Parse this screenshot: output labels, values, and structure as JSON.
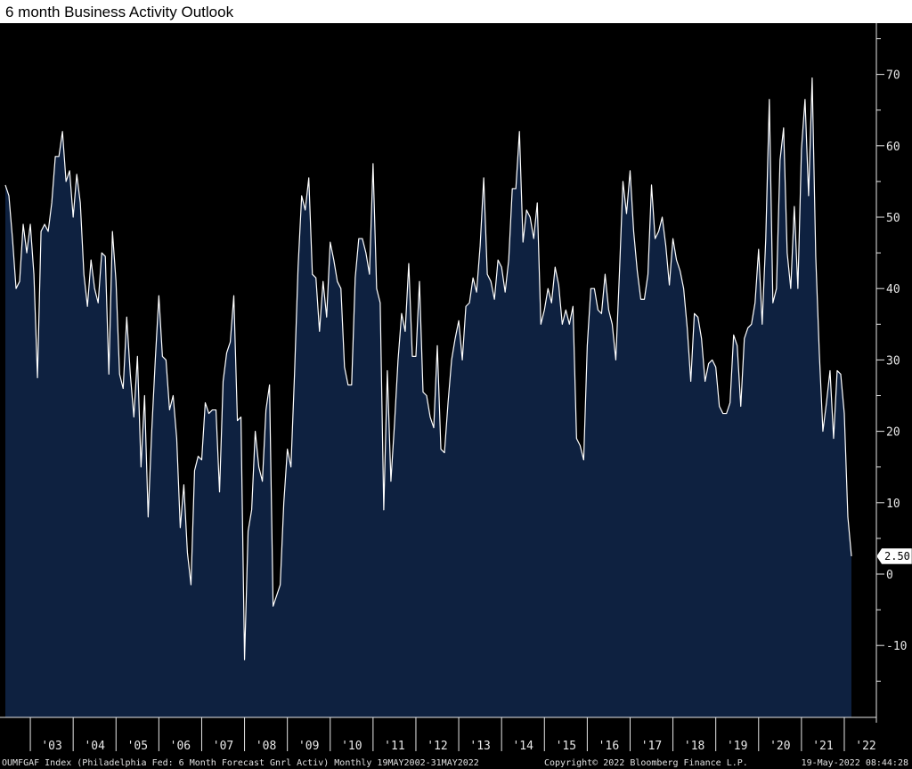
{
  "title": "6 month Business Activity Outlook",
  "chart_data": {
    "type": "area",
    "title": "6 month Business Activity Outlook",
    "xlabel": "",
    "ylabel": "",
    "ylim": [
      -20,
      77
    ],
    "y_ticks": [
      -10,
      0,
      10,
      20,
      30,
      40,
      50,
      60,
      70
    ],
    "y_tick_labels": [
      "-10",
      "0",
      "10",
      "20",
      "30",
      "40",
      "50",
      "60",
      "70"
    ],
    "x_tick_labels": [
      "'03",
      "'04",
      "'05",
      "'06",
      "'07",
      "'08",
      "'09",
      "'10",
      "'11",
      "'12",
      "'13",
      "'14",
      "'15",
      "'16",
      "'17",
      "'18",
      "'19",
      "'20",
      "'21",
      "'22"
    ],
    "x_start": "2002-05",
    "x_end": "2022-05",
    "frequency": "monthly",
    "last_value_label": "2.50",
    "colors": {
      "fill": "#0e2140",
      "line": "#ffffff",
      "background": "#000000",
      "marker_bg": "#ffffff"
    },
    "series": [
      {
        "values": [
          54.5,
          53.0,
          47.0,
          40.0,
          41.0,
          49.0,
          45.0,
          49.0,
          42.0,
          27.5,
          48.0,
          49.0,
          48.0,
          52.0,
          58.5,
          58.5,
          62.0,
          55.0,
          56.5,
          50.0,
          56.0,
          52.0,
          42.0,
          37.5,
          44.0,
          40.0,
          38.0,
          45.0,
          44.5,
          28.0,
          48.0,
          41.0,
          28.0,
          26.0,
          36.0,
          28.0,
          22.0,
          30.5,
          15.0,
          25.0,
          8.0,
          20.0,
          30.0,
          39.0,
          30.5,
          30.0,
          23.0,
          25.0,
          19.0,
          6.5,
          12.5,
          3.0,
          -1.5,
          14.5,
          16.5,
          16.0,
          24.0,
          22.5,
          23.0,
          23.0,
          11.5,
          27.0,
          31.0,
          32.5,
          39.0,
          21.5,
          22.0,
          -12.0,
          6.0,
          9.0,
          20.0,
          15.0,
          13.0,
          23.0,
          26.5,
          -4.5,
          -3.0,
          -1.5,
          10.0,
          17.5,
          15.0,
          28.0,
          43.0,
          53.0,
          51.0,
          55.5,
          42.0,
          41.5,
          34.0,
          41.0,
          36.0,
          46.5,
          44.0,
          41.0,
          40.0,
          29.0,
          26.5,
          26.5,
          41.5,
          47.0,
          47.0,
          45.0,
          42.0,
          57.5,
          40.0,
          38.0,
          9.0,
          28.5,
          13.0,
          21.0,
          30.0,
          36.5,
          34.0,
          43.5,
          30.5,
          30.5,
          41.0,
          25.5,
          25.0,
          22.0,
          20.5,
          32.0,
          17.5,
          17.0,
          24.0,
          30.0,
          33.0,
          35.5,
          30.0,
          37.5,
          38.0,
          41.5,
          39.5,
          46.0,
          55.5,
          42.0,
          41.0,
          38.5,
          44.0,
          43.0,
          39.5,
          44.0,
          54.0,
          54.0,
          62.0,
          46.5,
          51.0,
          50.0,
          47.0,
          52.0,
          35.0,
          37.0,
          40.0,
          38.0,
          43.0,
          40.5,
          35.0,
          37.0,
          35.0,
          37.5,
          19.0,
          18.0,
          16.0,
          32.0,
          40.0,
          40.0,
          37.0,
          36.5,
          42.0,
          37.0,
          35.0,
          30.0,
          42.0,
          55.0,
          50.5,
          56.5,
          48.0,
          42.5,
          38.5,
          38.5,
          42.0,
          54.5,
          47.0,
          48.0,
          50.0,
          46.0,
          40.5,
          47.0,
          44.0,
          42.5,
          40.0,
          34.5,
          27.0,
          36.5,
          36.0,
          33.0,
          27.0,
          29.5,
          30.0,
          29.0,
          23.5,
          22.5,
          22.5,
          24.0,
          33.5,
          32.0,
          23.5,
          33.0,
          34.5,
          35.0,
          38.0,
          45.5,
          35.0,
          47.0,
          66.5,
          38.0,
          40.0,
          58.0,
          62.5,
          45.0,
          40.0,
          51.5,
          40.0,
          59.5,
          66.5,
          53.0,
          69.5,
          44.5,
          31.0,
          20.0,
          24.0,
          28.5,
          19.0,
          28.5,
          28.0,
          22.5,
          8.0,
          2.5
        ]
      }
    ]
  },
  "footer": {
    "left": "OUMFGAF Index (Philadelphia Fed: 6 Month Forecast Gnrl Activ)  Monthly 19MAY2002-31MAY2022",
    "middle": "Copyright© 2022 Bloomberg Finance L.P.",
    "right": "19-May-2022 08:44:28"
  }
}
